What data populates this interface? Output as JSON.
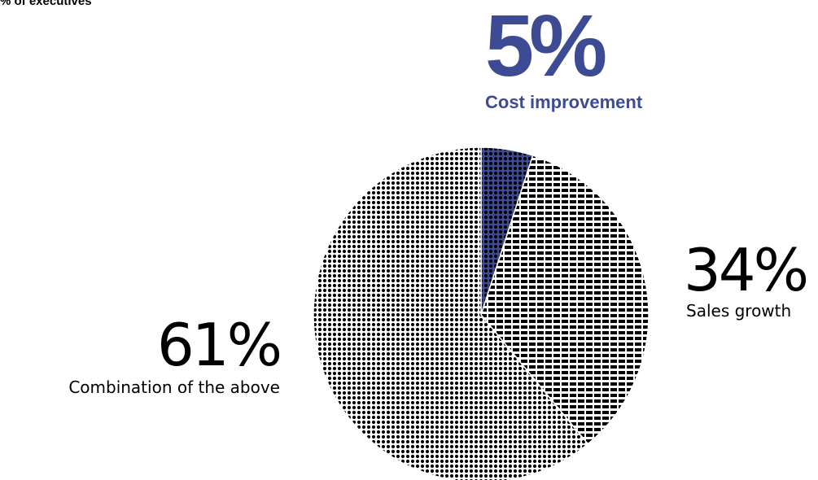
{
  "chart_data": {
    "type": "pie",
    "subtitle": "% of executives",
    "slices": [
      {
        "label": "Cost improvement",
        "value": 5,
        "display": "5%",
        "fill": "solid-dots",
        "color": "#3d4b94"
      },
      {
        "label": "Sales growth",
        "value": 34,
        "display": "34%",
        "fill": "horizontal-dashes",
        "color": "#000000"
      },
      {
        "label": "Combination of the above",
        "value": 61,
        "display": "61%",
        "fill": "dots",
        "color": "#000000"
      }
    ]
  },
  "colors": {
    "accent": "#3d4b94",
    "text": "#000000",
    "background": "#ffffff"
  }
}
